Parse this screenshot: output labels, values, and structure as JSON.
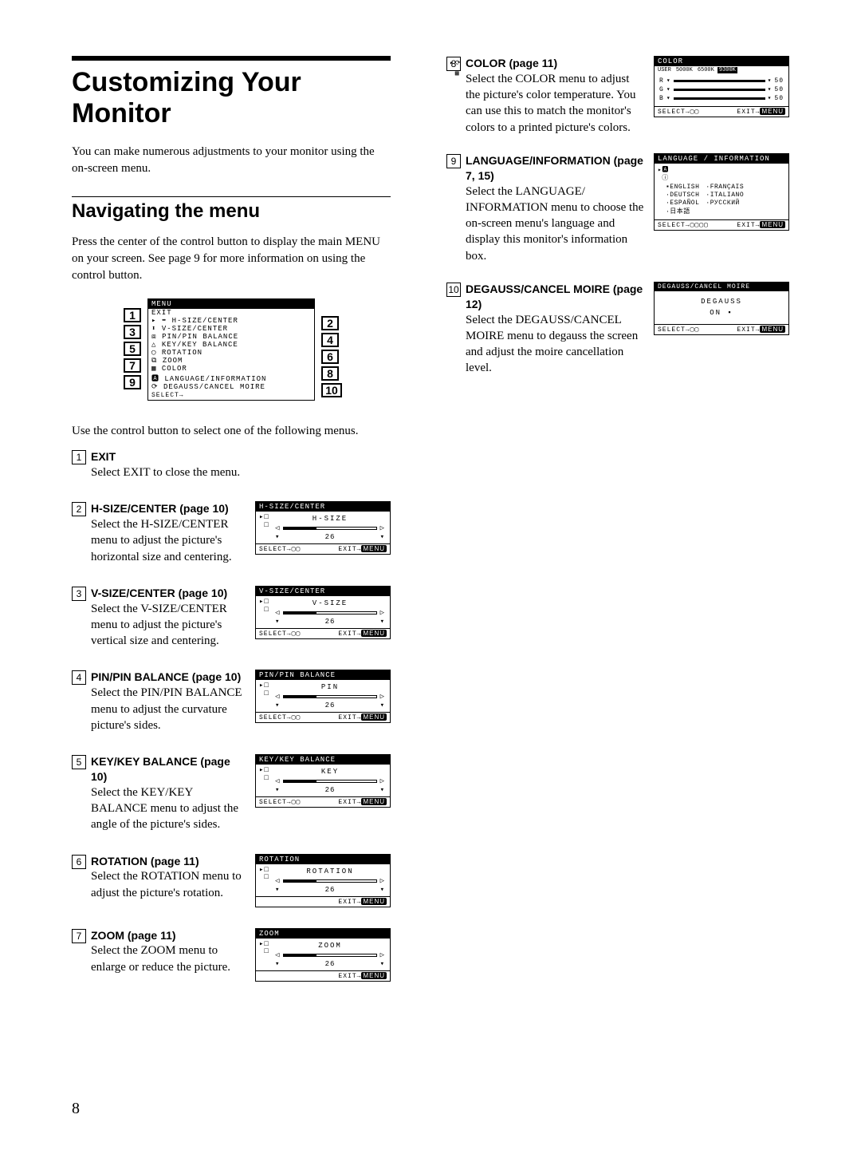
{
  "page_number": "8",
  "title": "Customizing Your Monitor",
  "intro": "You can make numerous adjustments to your monitor using the on-screen menu.",
  "nav_heading": "Navigating the menu",
  "nav_text": "Press the center of the control button to display the main MENU on your screen. See page 9 for more information on using the control button.",
  "after_menu_text": "Use the control button to select one of the following menus.",
  "main_menu": {
    "title": "MENU",
    "lines": [
      "  EXIT",
      "▸ ⬌ H-SIZE/CENTER",
      "  ⬍ V-SIZE/CENTER",
      "  ⧈ PIN/PIN BALANCE",
      "  △ KEY/KEY BALANCE",
      "  ◯ ROTATION",
      "  ⧉ ZOOM",
      "  ▦ COLOR",
      "  🅰 LANGUAGE/INFORMATION",
      "  ⟳ DEGAUSS/CANCEL MOIRE"
    ],
    "footer_select": "SELECT→"
  },
  "items": [
    {
      "n": "1",
      "head": "EXIT",
      "desc": "Select EXIT to close the menu."
    },
    {
      "n": "2",
      "head": "H-SIZE/CENTER (page 10)",
      "desc": "Select the H-SIZE/CENTER menu to adjust the picture's horizontal size and centering.",
      "osd": {
        "title": "H-SIZE/CENTER",
        "label": "H-SIZE",
        "value": "26",
        "fill": 35
      }
    },
    {
      "n": "3",
      "head": "V-SIZE/CENTER (page 10)",
      "desc": "Select the V-SIZE/CENTER menu to adjust the picture's vertical size and centering.",
      "osd": {
        "title": "V-SIZE/CENTER",
        "label": "V-SIZE",
        "value": "26",
        "fill": 35
      }
    },
    {
      "n": "4",
      "head": "PIN/PIN BALANCE (page 10)",
      "desc": "Select the PIN/PIN BALANCE menu to adjust the curvature picture's sides.",
      "osd": {
        "title": "PIN/PIN BALANCE",
        "label": "PIN",
        "value": "26",
        "fill": 35
      }
    },
    {
      "n": "5",
      "head": "KEY/KEY BALANCE (page 10)",
      "desc": "Select the KEY/KEY BALANCE menu to adjust the angle of the picture's sides.",
      "osd": {
        "title": "KEY/KEY BALANCE",
        "label": "KEY",
        "value": "26",
        "fill": 35
      }
    },
    {
      "n": "6",
      "head": "ROTATION (page 11)",
      "desc": "Select the ROTATION menu to adjust the picture's rotation.",
      "osd": {
        "title": "ROTATION",
        "label": "ROTATION",
        "value": "26",
        "fill": 35,
        "no_select": true
      }
    },
    {
      "n": "7",
      "head": "ZOOM (page 11)",
      "desc": "Select the ZOOM menu to enlarge or reduce the picture.",
      "osd": {
        "title": "ZOOM",
        "label": "ZOOM",
        "value": "26",
        "fill": 35,
        "no_select": true
      }
    }
  ],
  "right_items": [
    {
      "n": "8",
      "head": "COLOR (page 11)",
      "desc": "Select the COLOR menu to adjust the picture's color temperature. You can use this to match the monitor's colors to a printed picture's colors.",
      "osd_type": "color",
      "color": {
        "title": "COLOR",
        "tabs": [
          "USER",
          "5000K",
          "6500K",
          "9300K"
        ],
        "sel": 3,
        "rows": [
          {
            "l": "R",
            "v": "50"
          },
          {
            "l": "G",
            "v": "50"
          },
          {
            "l": "B",
            "v": "50"
          }
        ]
      }
    },
    {
      "n": "9",
      "head": "LANGUAGE/INFORMATION (page 7, 15)",
      "desc": "Select the LANGUAGE/ INFORMATION menu to choose the on-screen menu's language and display this monitor's information box.",
      "osd_type": "lang",
      "lang": {
        "title": "LANGUAGE / INFORMATION",
        "col1": [
          "ENGLISH",
          "DEUTSCH",
          "ESPAÑOL",
          "日本語"
        ],
        "col2": [
          "FRANÇAIS",
          "ITALIANO",
          "РУССКИЙ"
        ]
      }
    },
    {
      "n": "10",
      "head": "DEGAUSS/CANCEL MOIRE (page 12)",
      "desc": "Select the DEGAUSS/CANCEL MOIRE menu to degauss the screen and adjust the moire cancellation level.",
      "osd_type": "degauss",
      "deg": {
        "title": "DEGAUSS/CANCEL MOIRE",
        "label": "DEGAUSS",
        "state": "ON ▪"
      }
    }
  ],
  "osd_footer": {
    "select": "SELECT→▢▢",
    "exit": "EXIT→",
    "menu_badge": "MENU"
  }
}
